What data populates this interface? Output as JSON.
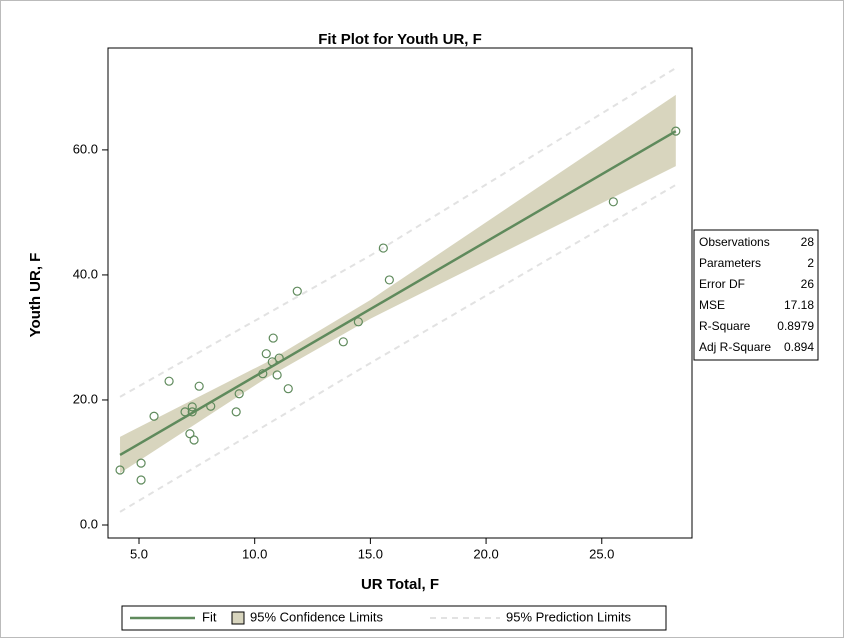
{
  "chart_data": {
    "type": "scatter",
    "title": "Fit Plot for Youth UR, F",
    "x_label": "UR Total, F",
    "y_label": "Youth UR, F",
    "x": [
      4.18,
      5.09,
      5.09,
      5.65,
      6.3,
      6.99,
      7.3,
      7.3,
      7.2,
      7.38,
      7.6,
      8.1,
      9.2,
      9.33,
      10.35,
      10.5,
      10.76,
      10.8,
      10.97,
      11.06,
      11.45,
      11.84,
      13.83,
      14.48,
      15.56,
      15.82,
      25.5,
      28.2
    ],
    "values": [
      8.8,
      9.9,
      7.2,
      17.4,
      23.0,
      18.1,
      18.9,
      18.1,
      14.6,
      13.6,
      22.2,
      19.0,
      18.1,
      21.0,
      24.2,
      27.4,
      26.1,
      29.9,
      24.0,
      26.7,
      21.8,
      37.4,
      29.3,
      32.5,
      44.3,
      39.2,
      51.7,
      63.0
    ],
    "color": "#5f8a5c",
    "fit": {
      "name": "Fit",
      "x": [
        4.18,
        28.2
      ],
      "values": [
        11.2,
        63.0
      ],
      "color": "#5f8a5c"
    },
    "confidence": {
      "name": "95% Confidence Limits",
      "x": [
        4.18,
        10.5,
        15.0,
        28.2
      ],
      "upper": [
        14.1,
        26.0,
        36.0,
        68.8
      ],
      "lower": [
        8.3,
        23.5,
        33.0,
        57.4
      ],
      "color": "#d8d5be"
    },
    "prediction": {
      "name": "95% Prediction Limits",
      "x": [
        4.18,
        15.0,
        28.2
      ],
      "upper": [
        20.5,
        43.1,
        73.1
      ],
      "lower": [
        2.1,
        25.9,
        54.4
      ],
      "color": "#e2e2e2"
    },
    "xlim": [
      3.66,
      28.9
    ],
    "ylim": [
      -2.08,
      76.3
    ],
    "xticks": [
      {
        "value": 5,
        "label": "5.0"
      },
      {
        "value": 10,
        "label": "10.0"
      },
      {
        "value": 15,
        "label": "15.0"
      },
      {
        "value": 20,
        "label": "20.0"
      },
      {
        "value": 25,
        "label": "25.0"
      }
    ],
    "yticks": [
      {
        "value": 0,
        "label": "0.0"
      },
      {
        "value": 20,
        "label": "20.0"
      },
      {
        "value": 40,
        "label": "40.0"
      },
      {
        "value": 60,
        "label": "60.0"
      }
    ],
    "stats": {
      "labels": [
        "Observations",
        "Parameters",
        "Error DF",
        "MSE",
        "R-Square",
        "Adj R-Square"
      ],
      "values": [
        28,
        2,
        26,
        17.18,
        0.8979,
        0.894
      ]
    }
  }
}
